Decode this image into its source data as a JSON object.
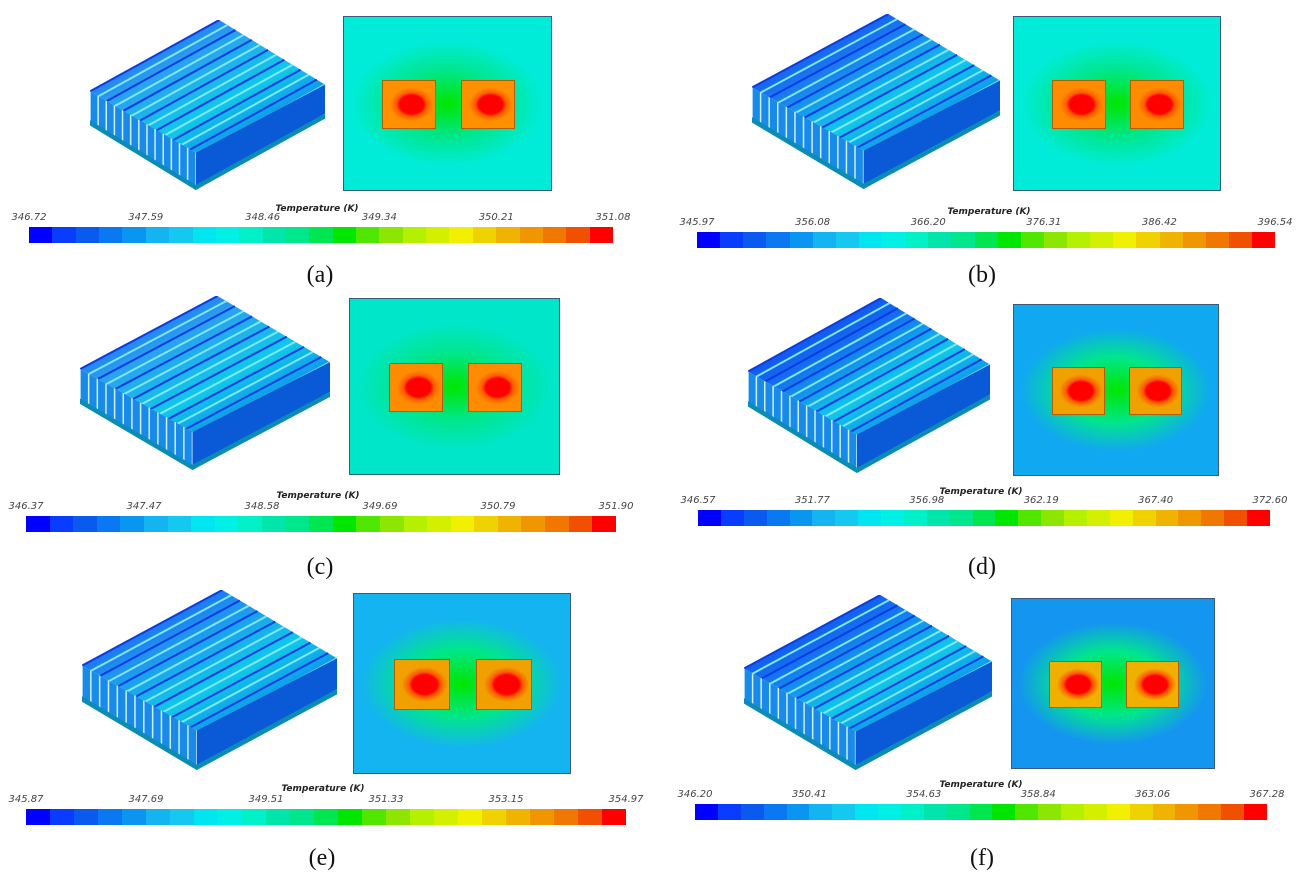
{
  "colorbar_title": "Temperature (K)",
  "colorbar_colors": [
    "#0000ff",
    "#0a3cff",
    "#0a5af0",
    "#0a78f0",
    "#0a96f0",
    "#14b4f0",
    "#14c8f0",
    "#00e6f0",
    "#00f0e6",
    "#00f0c8",
    "#00e6aa",
    "#00e68c",
    "#00e650",
    "#00e600",
    "#50e600",
    "#8ce600",
    "#b4f000",
    "#d2f000",
    "#f0f000",
    "#f0d200",
    "#f0b400",
    "#f09600",
    "#f07800",
    "#f05000",
    "#ff0000"
  ],
  "panels": [
    {
      "label": "(a)",
      "ticks": [
        "346.72",
        "347.59",
        "348.46",
        "349.34",
        "350.21",
        "351.08"
      ]
    },
    {
      "label": "(b)",
      "ticks": [
        "345.97",
        "356.08",
        "366.20",
        "376.31",
        "386.42",
        "396.54"
      ]
    },
    {
      "label": "(c)",
      "ticks": [
        "346.37",
        "347.47",
        "348.58",
        "349.69",
        "350.79",
        "351.90"
      ]
    },
    {
      "label": "(d)",
      "ticks": [
        "346.57",
        "351.77",
        "356.98",
        "362.19",
        "367.40",
        "372.60"
      ]
    },
    {
      "label": "(e)",
      "ticks": [
        "345.87",
        "347.69",
        "349.51",
        "351.33",
        "353.15",
        "354.97"
      ]
    },
    {
      "label": "(f)",
      "ticks": [
        "346.20",
        "350.41",
        "354.63",
        "358.84",
        "363.06",
        "367.28"
      ]
    }
  ]
}
